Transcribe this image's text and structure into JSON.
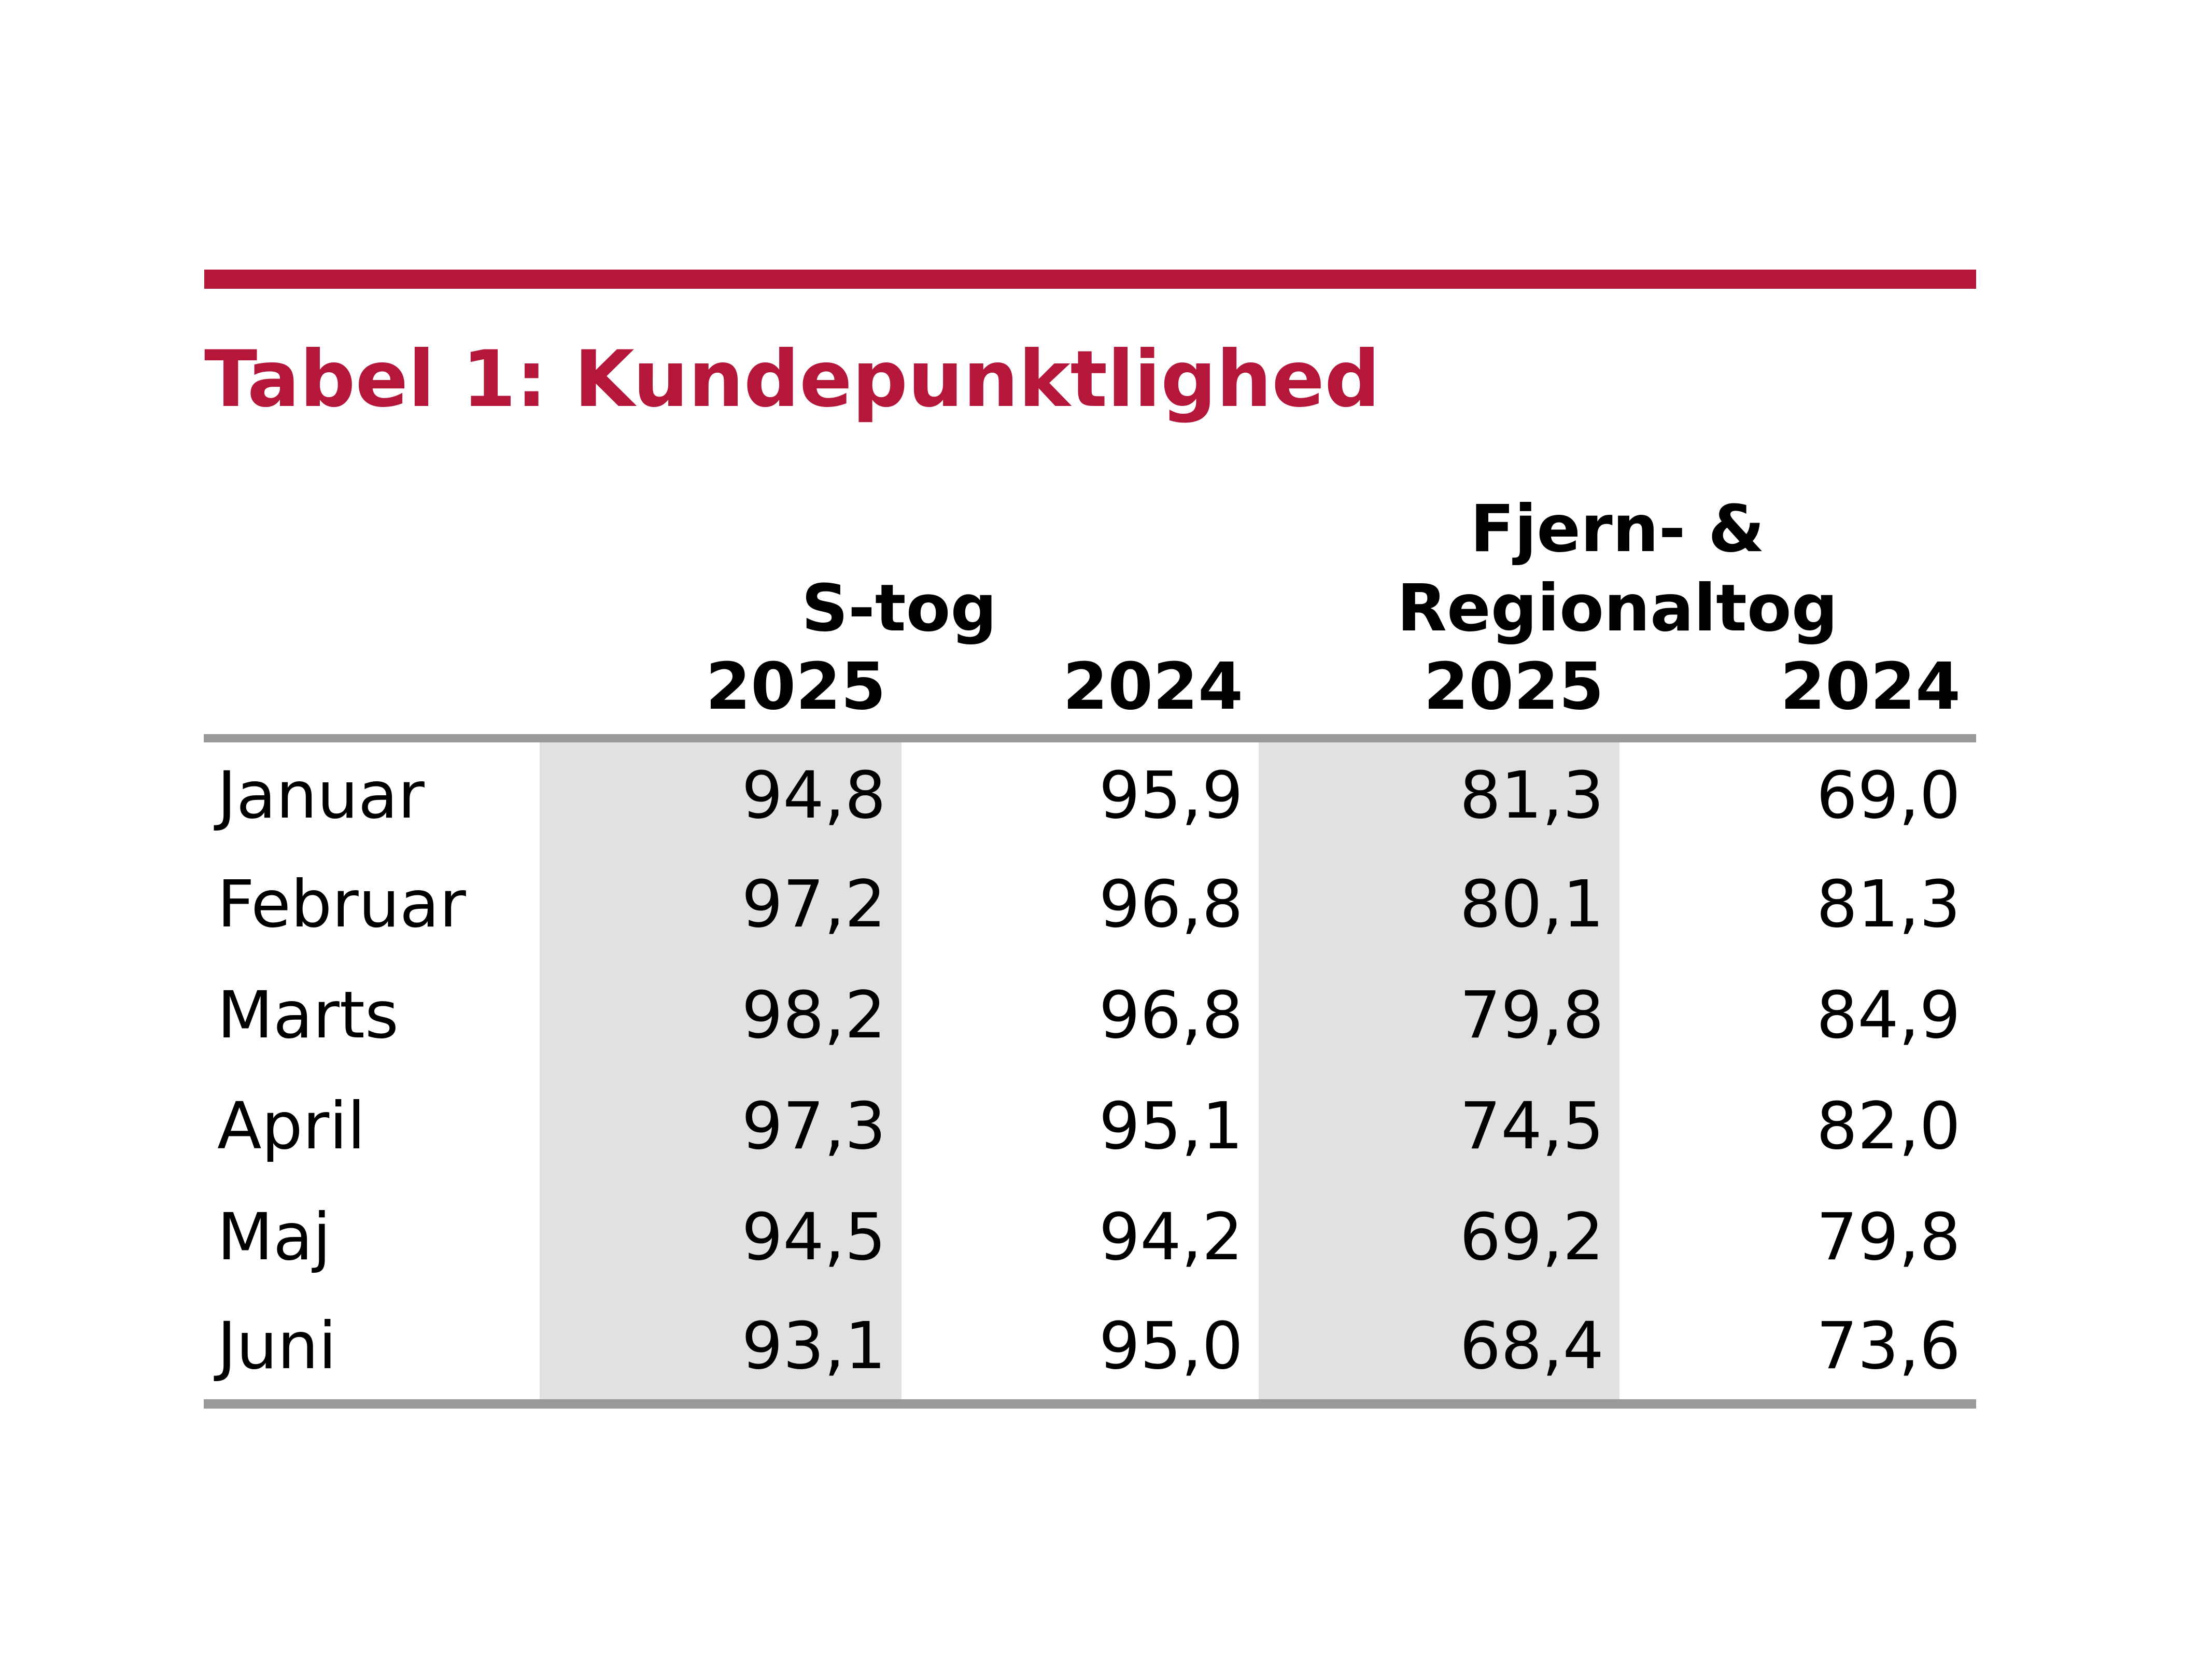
{
  "document": {
    "title": "Tabel 1: Kundepunktlighed"
  },
  "table": {
    "group_headers": [
      {
        "label": "S-tog"
      },
      {
        "label": "Fjern- & Regionaltog"
      }
    ],
    "year_headers": [
      "2025",
      "2024",
      "2025",
      "2024"
    ],
    "rows": [
      {
        "month": "Januar",
        "values": [
          "94,8",
          "95,9",
          "81,3",
          "69,0"
        ]
      },
      {
        "month": "Februar",
        "values": [
          "97,2",
          "96,8",
          "80,1",
          "81,3"
        ]
      },
      {
        "month": "Marts",
        "values": [
          "98,2",
          "96,8",
          "79,8",
          "84,9"
        ]
      },
      {
        "month": "April",
        "values": [
          "97,3",
          "95,1",
          "74,5",
          "82,0"
        ]
      },
      {
        "month": "Maj",
        "values": [
          "94,5",
          "94,2",
          "69,2",
          "79,8"
        ]
      },
      {
        "month": "Juni",
        "values": [
          "93,1",
          "95,0",
          "68,4",
          "73,6"
        ]
      }
    ]
  },
  "colors": {
    "accent_red": "#B5173A",
    "rule_gray": "#999999",
    "band_gray": "#E1E1E1"
  }
}
